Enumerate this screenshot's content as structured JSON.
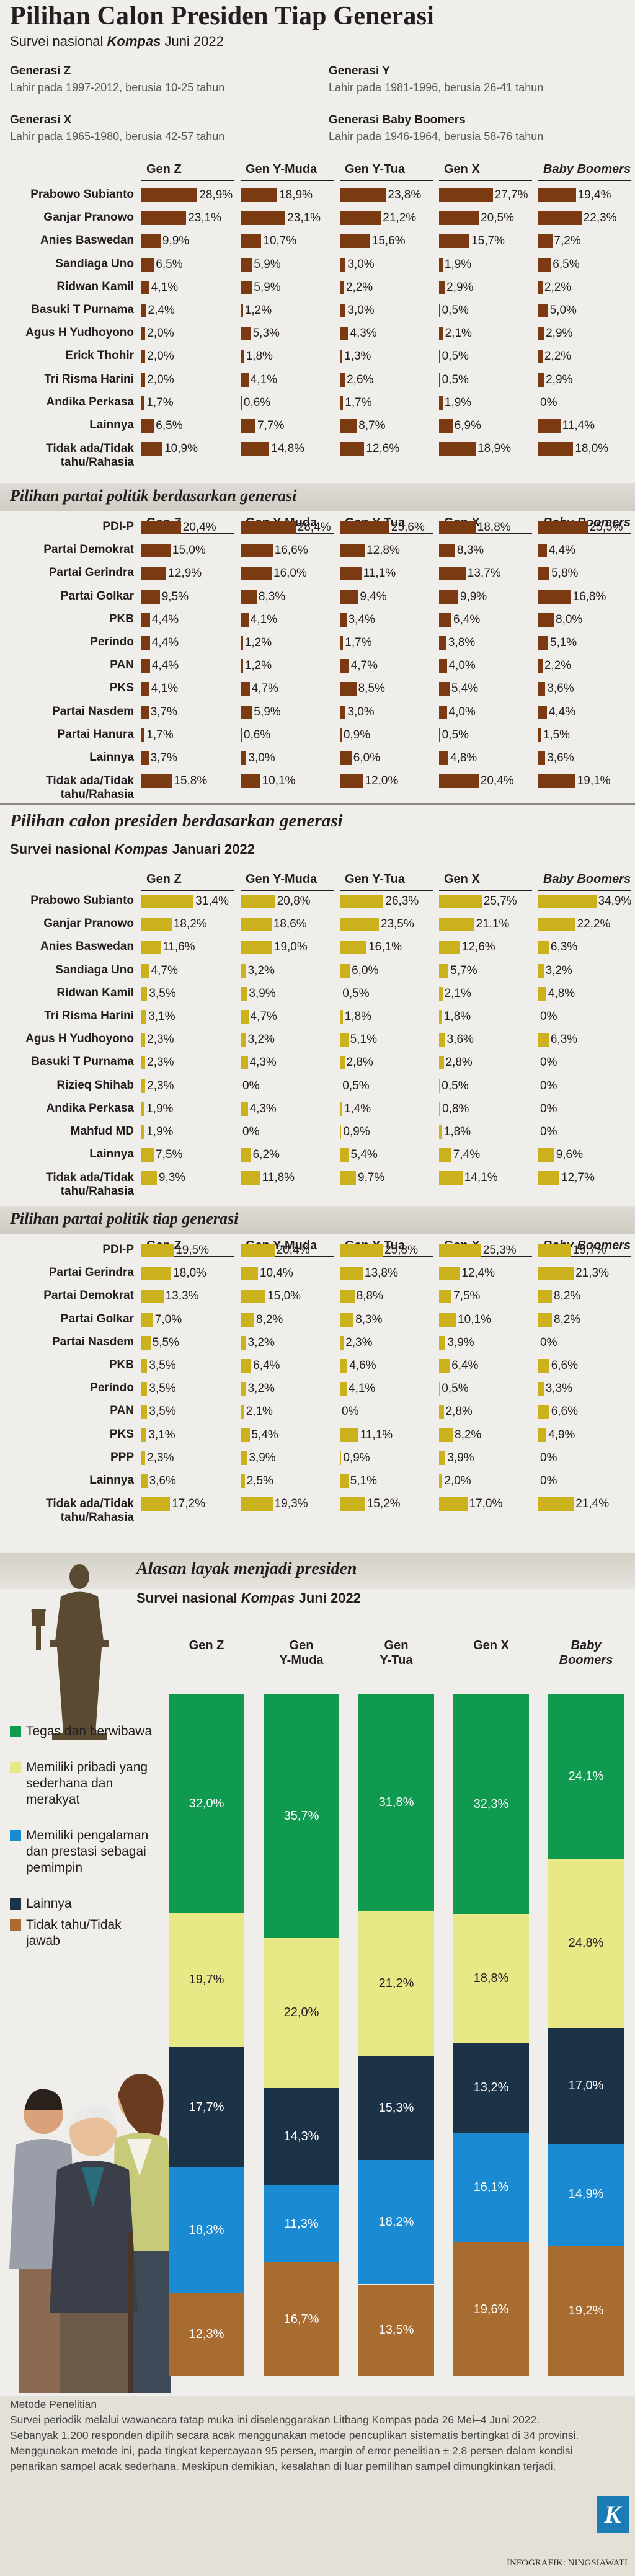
{
  "header": {
    "title": "Pilihan Calon Presiden Tiap Generasi",
    "subtitle_prefix": "Survei nasional ",
    "subtitle_em": "Kompas",
    "subtitle_suffix": " Juni 2022",
    "generations": [
      {
        "name": "Generasi Z",
        "desc": "Lahir pada 1997-2012, berusia 10-25 tahun"
      },
      {
        "name": "Generasi Y",
        "desc": "Lahir pada 1981-1996, berusia 26-41 tahun"
      },
      {
        "name": "Generasi X",
        "desc": "Lahir pada 1965-1980, berusia 42-57 tahun"
      },
      {
        "name": "Generasi Baby Boomers",
        "desc": "Lahir pada 1946-1964, berusia 58-76 tahun"
      }
    ]
  },
  "colors": {
    "june_bar": "#7b3a12",
    "jan_bar": "#cbb11b",
    "green": "#109a4f",
    "lightyellow": "#e9e887",
    "navy": "#1c3347",
    "blue": "#1a8ad2",
    "brown": "#a96c30"
  },
  "column_headers_june": [
    "Gen Z",
    "Gen Y-Muda",
    "Gen Y-Tua",
    "Gen X",
    "Baby Boomers"
  ],
  "column_headers_jan": [
    "Gen Z",
    "Gen Y-Muda",
    "Gen Y-Tua",
    "Gen X",
    "Baby Boomers"
  ],
  "section_titles": {
    "june_party": "Pilihan partai politik berdasarkan generasi",
    "jan_candidate": "Pilihan calon presiden berdasarkan generasi",
    "jan_candidate_sub_prefix": "Survei nasional ",
    "jan_candidate_sub_em": "Kompas",
    "jan_candidate_sub_suffix": " Januari 2022",
    "jan_party": "Pilihan partai politik tiap generasi",
    "reasons": "Alasan layak menjadi presiden",
    "reasons_sub_prefix": "Survei nasional ",
    "reasons_sub_em": "Kompas",
    "reasons_sub_suffix": " Juni 2022"
  },
  "chart_data": [
    {
      "type": "bar",
      "title": "Pilihan calon presiden (Juni 2022)",
      "unit": "%",
      "categories": [
        "Prabowo Subianto",
        "Ganjar Pranowo",
        "Anies Baswedan",
        "Sandiaga Uno",
        "Ridwan Kamil",
        "Basuki T Purnama",
        "Agus H Yudhoyono",
        "Erick Thohir",
        "Tri Risma Harini",
        "Andika Perkasa",
        "Lainnya",
        "Tidak ada/Tidak tahu/Rahasia"
      ],
      "series": [
        {
          "name": "Gen Z",
          "values": [
            28.9,
            23.1,
            9.9,
            6.5,
            4.1,
            2.4,
            2.0,
            2.0,
            2.0,
            1.7,
            6.5,
            10.9
          ]
        },
        {
          "name": "Gen Y-Muda",
          "values": [
            18.9,
            23.1,
            10.7,
            5.9,
            5.9,
            1.2,
            5.3,
            1.8,
            4.1,
            0.6,
            7.7,
            14.8
          ]
        },
        {
          "name": "Gen Y-Tua",
          "values": [
            23.8,
            21.2,
            15.6,
            3.0,
            2.2,
            3.0,
            4.3,
            1.3,
            2.6,
            1.7,
            8.7,
            12.6
          ]
        },
        {
          "name": "Gen X",
          "values": [
            27.7,
            20.5,
            15.7,
            1.9,
            2.9,
            0.5,
            2.1,
            0.5,
            0.5,
            1.9,
            6.9,
            18.9
          ]
        },
        {
          "name": "Baby Boomers",
          "values": [
            19.4,
            22.3,
            7.2,
            6.5,
            2.2,
            5.0,
            2.9,
            2.2,
            2.9,
            0,
            11.4,
            18.0
          ]
        }
      ]
    },
    {
      "type": "bar",
      "title": "Pilihan partai politik berdasarkan generasi",
      "unit": "%",
      "categories": [
        "PDI-P",
        "Partai Demokrat",
        "Partai Gerindra",
        "Partai Golkar",
        "PKB",
        "Perindo",
        "PAN",
        "PKS",
        "Partai Nasdem",
        "Partai Hanura",
        "Lainnya",
        "Tidak ada/Tidak tahu/Rahasia"
      ],
      "series": [
        {
          "name": "Gen Z",
          "values": [
            20.4,
            15.0,
            12.9,
            9.5,
            4.4,
            4.4,
            4.4,
            4.1,
            3.7,
            1.7,
            3.7,
            15.8
          ]
        },
        {
          "name": "Gen Y-Muda",
          "values": [
            28.4,
            16.6,
            16.0,
            8.3,
            4.1,
            1.2,
            1.2,
            4.7,
            5.9,
            0.6,
            3.0,
            10.1
          ]
        },
        {
          "name": "Gen Y-Tua",
          "values": [
            25.6,
            12.8,
            11.1,
            9.4,
            3.4,
            1.7,
            4.7,
            8.5,
            3.0,
            0.9,
            6.0,
            12.0
          ]
        },
        {
          "name": "Gen X",
          "values": [
            18.8,
            8.3,
            13.7,
            9.9,
            6.4,
            3.8,
            4.0,
            5.4,
            4.0,
            0.5,
            4.8,
            20.4
          ]
        },
        {
          "name": "Baby Boomers",
          "values": [
            25.5,
            4.4,
            5.8,
            16.8,
            8.0,
            5.1,
            2.2,
            3.6,
            4.4,
            1.5,
            3.6,
            19.1
          ]
        }
      ]
    },
    {
      "type": "bar",
      "title": "Pilihan calon presiden berdasarkan generasi",
      "unit": "%",
      "categories": [
        "Prabowo Subianto",
        "Ganjar Pranowo",
        "Anies Baswedan",
        "Sandiaga Uno",
        "Ridwan Kamil",
        "Tri Risma Harini",
        "Agus H Yudhoyono",
        "Basuki T Purnama",
        "Rizieq Shihab",
        "Andika Perkasa",
        "Mahfud MD",
        "Lainnya",
        "Tidak ada/Tidak tahu/Rahasia"
      ],
      "series": [
        {
          "name": "Gen Z",
          "values": [
            31.4,
            18.2,
            11.6,
            4.7,
            3.5,
            3.1,
            2.3,
            2.3,
            2.3,
            1.9,
            1.9,
            7.5,
            9.3
          ]
        },
        {
          "name": "Gen Y-Muda",
          "values": [
            20.8,
            18.6,
            19.0,
            3.2,
            3.9,
            4.7,
            3.2,
            4.3,
            0,
            4.3,
            0,
            6.2,
            11.8
          ]
        },
        {
          "name": "Gen Y-Tua",
          "values": [
            26.3,
            23.5,
            16.1,
            6.0,
            0.5,
            1.8,
            5.1,
            2.8,
            0.5,
            1.4,
            0.9,
            5.4,
            9.7
          ]
        },
        {
          "name": "Gen X",
          "values": [
            25.7,
            21.1,
            12.6,
            5.7,
            2.1,
            1.8,
            3.6,
            2.8,
            0.5,
            0.8,
            1.8,
            7.4,
            14.1
          ]
        },
        {
          "name": "Baby Boomers",
          "values": [
            34.9,
            22.2,
            6.3,
            3.2,
            4.8,
            0,
            6.3,
            0,
            0,
            0,
            0,
            9.6,
            12.7
          ]
        }
      ]
    },
    {
      "type": "bar",
      "title": "Pilihan partai politik tiap generasi",
      "unit": "%",
      "categories": [
        "PDI-P",
        "Partai Gerindra",
        "Partai Demokrat",
        "Partai Golkar",
        "Partai Nasdem",
        "PKB",
        "Perindo",
        "PAN",
        "PKS",
        "PPP",
        "Lainnya",
        "Tidak ada/Tidak tahu/Rahasia"
      ],
      "series": [
        {
          "name": "Gen Z",
          "values": [
            19.5,
            18.0,
            13.3,
            7.0,
            5.5,
            3.5,
            3.5,
            3.5,
            3.1,
            2.3,
            3.6,
            17.2
          ]
        },
        {
          "name": "Gen Y-Muda",
          "values": [
            20.4,
            10.4,
            15.0,
            8.2,
            3.2,
            6.4,
            3.2,
            2.1,
            5.4,
            3.9,
            2.5,
            19.3
          ]
        },
        {
          "name": "Gen Y-Tua",
          "values": [
            25.8,
            13.8,
            8.8,
            8.3,
            2.3,
            4.6,
            4.1,
            0,
            11.1,
            0.9,
            5.1,
            15.2
          ]
        },
        {
          "name": "Gen X",
          "values": [
            25.3,
            12.4,
            7.5,
            10.1,
            3.9,
            6.4,
            0.5,
            2.8,
            8.2,
            3.9,
            2.0,
            17.0
          ]
        },
        {
          "name": "Baby Boomers",
          "values": [
            19.7,
            21.3,
            8.2,
            8.2,
            0,
            6.6,
            3.3,
            6.6,
            4.9,
            0,
            0,
            21.4
          ]
        }
      ]
    },
    {
      "type": "bar",
      "stacked": true,
      "title": "Alasan layak menjadi presiden",
      "unit": "%",
      "categories": [
        "Gen Z",
        "Gen Y-Muda",
        "Gen Y-Tua",
        "Gen X",
        "Baby Boomers"
      ],
      "series": [
        {
          "name": "Tegas dan berwibawa",
          "values": [
            32.0,
            35.7,
            31.8,
            32.3,
            24.1
          ]
        },
        {
          "name": "Memiliki pribadi yang sederhana dan merakyat",
          "values": [
            19.7,
            22.0,
            21.2,
            18.8,
            24.8
          ]
        },
        {
          "name": "Lainnya",
          "values": [
            17.7,
            14.3,
            15.3,
            13.2,
            17.0
          ]
        },
        {
          "name": "Memiliki pengalaman dan prestasi sebagai pemimpin",
          "values": [
            18.3,
            11.3,
            18.2,
            16.1,
            14.9
          ]
        },
        {
          "name": "Tidak tahu/Tidak jawab",
          "values": [
            12.3,
            16.7,
            13.5,
            19.6,
            19.2
          ]
        }
      ]
    }
  ],
  "reasons_headers": [
    "Gen Z",
    "Gen\nY-Muda",
    "Gen\nY-Tua",
    "Gen X",
    "Baby\nBoomers"
  ],
  "legend": [
    {
      "label": "Tegas dan berwibawa",
      "color": "#109a4f"
    },
    {
      "label": "Memiliki pribadi yang sederhana dan merakyat",
      "color": "#e9e887"
    },
    {
      "label": "Memiliki pengalaman dan prestasi sebagai pemimpin",
      "color": "#1a8ad2"
    },
    {
      "label": "Lainnya",
      "color": "#1c3347"
    },
    {
      "label": "Tidak tahu/Tidak jawab",
      "color": "#a96c30"
    }
  ],
  "footnote": {
    "heading": "Metode Penelitian",
    "body": "Survei periodik melalui wawancara tatap muka ini diselenggarakan Litbang Kompas pada 26 Mei–4 Juni 2022. Sebanyak 1.200 responden dipilih secara acak menggunakan metode pencuplikan sistematis bertingkat di 34 provinsi. Menggunakan metode ini, pada tingkat kepercayaan 95 persen, margin of error penelitian ± 2,8 persen dalam kondisi penarikan sampel acak sederhana. Meskipun demikian, kesalahan di luar pemilihan sampel dimungkinkan terjadi.",
    "credit": "INFOGRAFIK: NINGSIAWATI",
    "logo": "K"
  }
}
